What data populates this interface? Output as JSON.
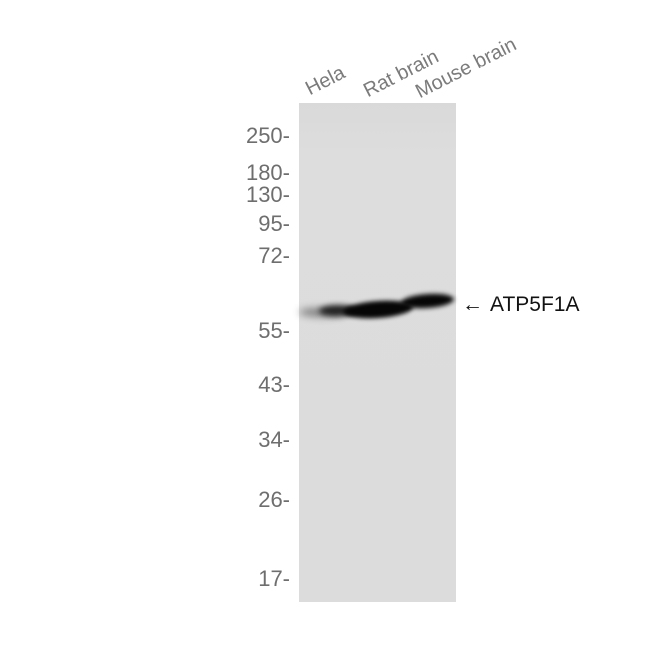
{
  "figure": {
    "type": "western blot",
    "lane_labels": [
      "Hela",
      "Rat brain",
      "Mouse brain"
    ],
    "ladder_markers": [
      "250-",
      "180-",
      "130-",
      "95-",
      "72-",
      "55-",
      "43-",
      "34-",
      "26-",
      "17-"
    ],
    "annotation": {
      "arrow": "←",
      "label": "ATP5F1A"
    },
    "bands": [
      {
        "lane": "Hela",
        "intensity": "weak",
        "position": "between 72 and 55 markers, just above 55"
      },
      {
        "lane": "Rat brain",
        "intensity": "strong",
        "position": "between 72 and 55 markers, just above 55"
      },
      {
        "lane": "Mouse brain",
        "intensity": "strong",
        "position": "between 72 and 55 markers, slightly higher than other lanes"
      }
    ],
    "colors": {
      "background": "#ffffff",
      "gel": "#dcdcdc",
      "ladder_text": "#6e6e6e",
      "lane_text": "#7b7b7b",
      "annotation_text": "#121212",
      "band": "#060606"
    }
  }
}
